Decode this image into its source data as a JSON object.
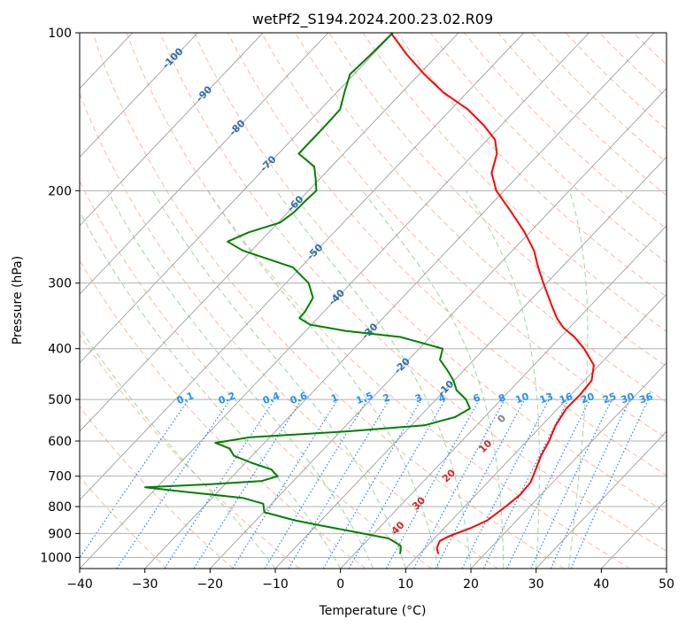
{
  "chart_data": {
    "type": "line",
    "title": "wetPf2_S194.2024.200.23.02.R09",
    "xlabel": "Temperature (°C)",
    "ylabel": "Pressure (hPa)",
    "xlim": [
      -40,
      50
    ],
    "ylim": [
      1050,
      100
    ],
    "yscale": "log",
    "grid": true,
    "x_ticks": [
      "−40",
      "−30",
      "−20",
      "−10",
      "0",
      "10",
      "20",
      "30",
      "40",
      "50"
    ],
    "x_tick_values": [
      -40,
      -30,
      -20,
      -10,
      0,
      10,
      20,
      30,
      40,
      50
    ],
    "y_ticks": [
      "100",
      "200",
      "300",
      "400",
      "500",
      "600",
      "700",
      "800",
      "900",
      "1000"
    ],
    "y_tick_values": [
      100,
      200,
      300,
      400,
      500,
      600,
      700,
      800,
      900,
      1000
    ],
    "skew_deg_per_decade": 76.5,
    "series": [
      {
        "color": "#ff0000",
        "pressure": [
          985,
          960,
          930,
          910,
          880,
          850,
          800,
          760,
          720,
          680,
          640,
          600,
          560,
          520,
          490,
          460,
          430,
          400,
          380,
          365,
          350,
          330,
          300,
          280,
          260,
          240,
          220,
          200,
          185,
          170,
          160,
          150,
          140,
          130,
          120,
          110,
          100
        ],
        "values": [
          12.9,
          11.8,
          11.2,
          12.0,
          14.0,
          15.5,
          16.3,
          16.8,
          16.6,
          15.5,
          14.3,
          13.4,
          12.1,
          11.3,
          11.4,
          11.1,
          9.2,
          5.3,
          2.1,
          -0.9,
          -3.3,
          -6.1,
          -10.5,
          -13.6,
          -16.7,
          -20.8,
          -25.7,
          -31.2,
          -34.5,
          -36.5,
          -38.8,
          -42.7,
          -47.4,
          -53.6,
          -59.2,
          -64.8,
          -70.4
        ]
      },
      {
        "color": "#008000",
        "pressure": [
          985,
          970,
          950,
          920,
          890,
          870,
          850,
          820,
          790,
          770,
          750,
          735,
          725,
          715,
          700,
          690,
          680,
          660,
          640,
          620,
          605,
          590,
          575,
          560,
          540,
          520,
          500,
          480,
          460,
          440,
          420,
          400,
          380,
          370,
          360,
          350,
          340,
          320,
          300,
          280,
          260,
          250,
          240,
          230,
          220,
          210,
          200,
          190,
          180,
          170,
          160,
          150,
          140,
          130,
          120,
          110,
          100
        ],
        "values": [
          7.0,
          6.6,
          5.9,
          3.0,
          -4.1,
          -9.1,
          -14.0,
          -19.9,
          -21.3,
          -25.3,
          -35.0,
          -41.8,
          -32.1,
          -24.8,
          -23.1,
          -24.1,
          -25.0,
          -29.1,
          -32.8,
          -34.5,
          -37.5,
          -33.0,
          -19.0,
          -8.0,
          -4.5,
          -3.5,
          -5.4,
          -8.2,
          -10.1,
          -12.5,
          -15.2,
          -16.4,
          -24.6,
          -33.9,
          -40.2,
          -42.8,
          -42.9,
          -43.7,
          -46.5,
          -51.2,
          -61.4,
          -65.0,
          -63.1,
          -59.7,
          -59.1,
          -59.0,
          -58.8,
          -60.6,
          -62.6,
          -66.9,
          -66.9,
          -66.9,
          -67.0,
          -68.8,
          -70.6,
          -70.3,
          -70.1
        ]
      }
    ],
    "mixing_ratio_labels": [
      "0.1",
      "0.2",
      "0.4",
      "0.6",
      "1",
      "1.5",
      "2",
      "3",
      "4",
      "6",
      "8",
      "10",
      "13",
      "16",
      "20",
      "25",
      "30",
      "36"
    ],
    "mixing_ratio_values": [
      0.1,
      0.2,
      0.4,
      0.6,
      1,
      1.5,
      2,
      3,
      4,
      6,
      8,
      10,
      13,
      16,
      20,
      25,
      30,
      36
    ],
    "dry_adiabat_labels": [
      "-100",
      "-90",
      "-80",
      "-70",
      "-60",
      "-50",
      "-40",
      "-30",
      "-20",
      "-10"
    ],
    "wet_adiabat_labels": [
      "0",
      "10",
      "20",
      "30",
      "40"
    ],
    "colors": {
      "temperature": "#ff0000",
      "dewpoint": "#008000",
      "isotherm": "#808080",
      "isobar": "#b0b0b0",
      "dry_adiabat": "#f4a582",
      "moist_adiabat": "#9fd49f",
      "mixing_ratio": "#1f77e0",
      "dry_adiabat_label": "#2b6ea6",
      "wet_adiabat_label": "#d62728",
      "mixing_ratio_label": "#1e90ff",
      "zero_label": "#808080"
    }
  }
}
